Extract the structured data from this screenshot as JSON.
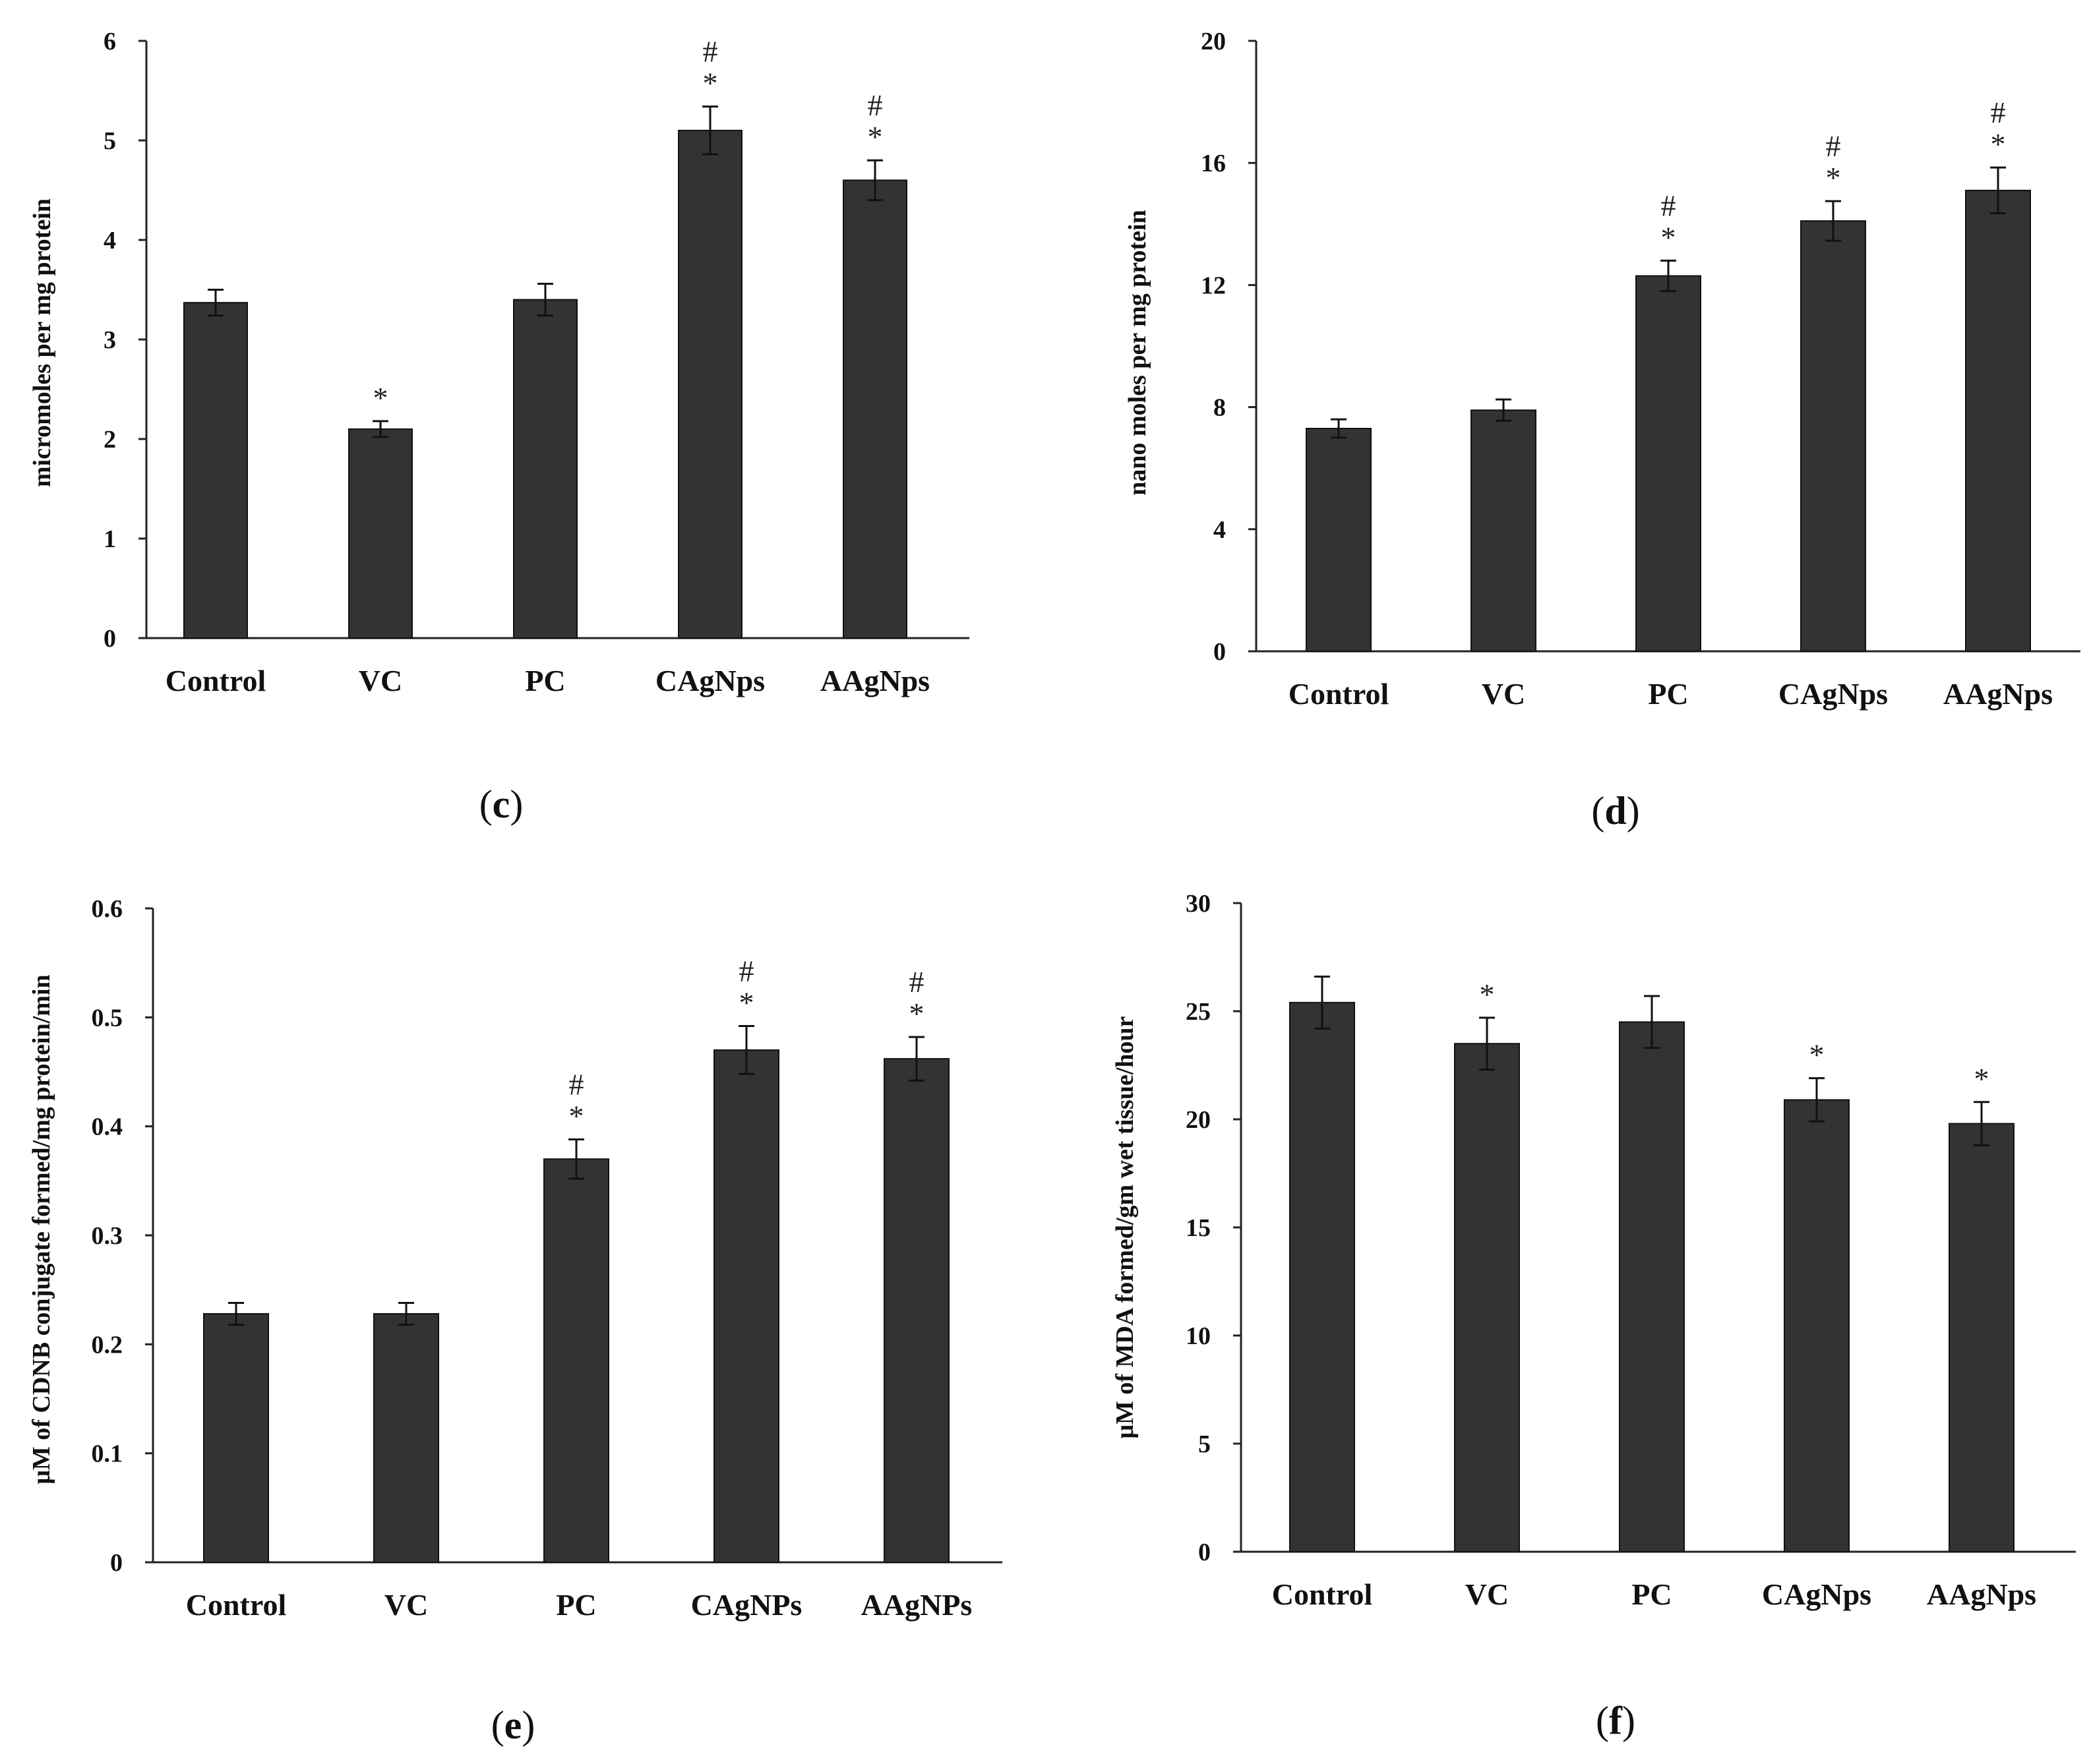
{
  "chart_data": [
    {
      "type": "bar",
      "panel": "c",
      "ylabel": "micromoles per mg protein",
      "ylim": [
        0,
        6
      ],
      "yticks": [
        0,
        1,
        2,
        3,
        4,
        5,
        6
      ],
      "categories": [
        "Control",
        "VC",
        "PC",
        "CAgNps",
        "AAgNps"
      ],
      "values": [
        3.37,
        2.1,
        3.4,
        5.1,
        4.6
      ],
      "errors": [
        0.13,
        0.08,
        0.16,
        0.24,
        0.2
      ],
      "markers": [
        "",
        "*",
        "",
        "#*",
        "#*"
      ]
    },
    {
      "type": "bar",
      "panel": "d",
      "ylabel": "nano moles per mg protein",
      "ylim": [
        0,
        20
      ],
      "yticks": [
        0,
        4,
        8,
        12,
        16,
        20
      ],
      "categories": [
        "Control",
        "VC",
        "PC",
        "CAgNps",
        "AAgNps"
      ],
      "values": [
        7.3,
        7.9,
        12.3,
        14.1,
        15.1
      ],
      "errors": [
        0.3,
        0.35,
        0.5,
        0.65,
        0.75
      ],
      "markers": [
        "",
        "",
        "#*",
        "#*",
        "#*"
      ]
    },
    {
      "type": "bar",
      "panel": "e",
      "ylabel": "μM of CDNB conjugate formed/mg protein/min",
      "ylim": [
        0,
        0.6
      ],
      "yticks": [
        0,
        0.1,
        0.2,
        0.3,
        0.4,
        0.5,
        0.6
      ],
      "categories": [
        "Control",
        "VC",
        "PC",
        "CAgNPs",
        "AAgNPs"
      ],
      "values": [
        0.228,
        0.228,
        0.37,
        0.47,
        0.462
      ],
      "errors": [
        0.01,
        0.01,
        0.018,
        0.022,
        0.02
      ],
      "markers": [
        "",
        "",
        "#*",
        "#*",
        "#*"
      ]
    },
    {
      "type": "bar",
      "panel": "f",
      "ylabel": "μM of MDA formed/gm wet tissue/hour",
      "ylim": [
        0,
        30
      ],
      "yticks": [
        0,
        5,
        10,
        15,
        20,
        25,
        30
      ],
      "categories": [
        "Control",
        "VC",
        "PC",
        "CAgNps",
        "AAgNps"
      ],
      "values": [
        25.4,
        23.5,
        24.5,
        20.9,
        19.8
      ],
      "errors": [
        1.2,
        1.2,
        1.2,
        1.0,
        1.0
      ],
      "markers": [
        "",
        "*",
        "",
        "*",
        "*"
      ]
    }
  ],
  "colors": {
    "bar": "#333333",
    "axis": "#222222",
    "text": "#111111"
  }
}
